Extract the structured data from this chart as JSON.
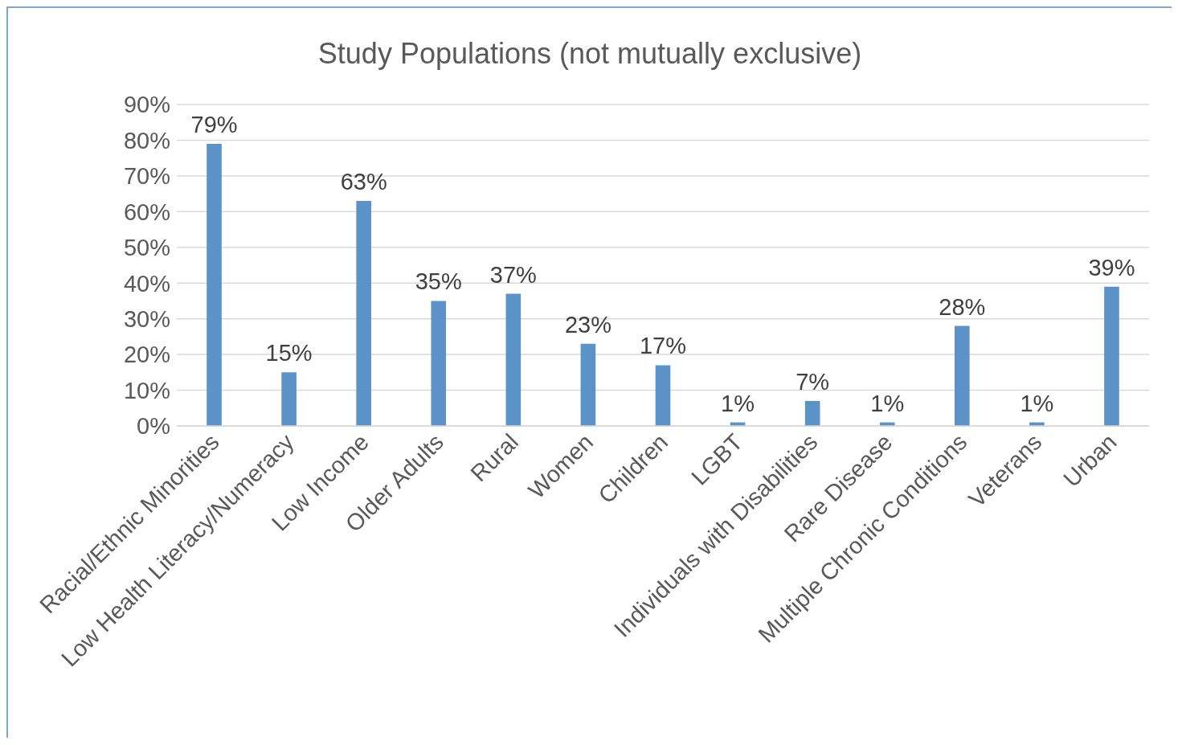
{
  "chart_data": {
    "type": "bar",
    "title": "Study Populations (not mutually exclusive)",
    "categories": [
      "Racial/Ethnic Minorities",
      "Low Health Literacy/Numeracy",
      "Low Income",
      "Older Adults",
      "Rural",
      "Women",
      "Children",
      "LGBT",
      "Individuals with Disabilities",
      "Rare Disease",
      "Multiple Chronic Conditions",
      "Veterans",
      "Urban"
    ],
    "values": [
      79,
      15,
      63,
      35,
      37,
      23,
      17,
      1,
      7,
      1,
      28,
      1,
      39
    ],
    "value_labels": [
      "79%",
      "15%",
      "63%",
      "35%",
      "37%",
      "23%",
      "17%",
      "1%",
      "7%",
      "1%",
      "28%",
      "1%",
      "39%"
    ],
    "color": "#5b93c8",
    "ylim": [
      0,
      90
    ],
    "yticks": [
      {
        "value": 0,
        "label": "0%"
      },
      {
        "value": 10,
        "label": "10%"
      },
      {
        "value": 20,
        "label": "20%"
      },
      {
        "value": 30,
        "label": "30%"
      },
      {
        "value": 40,
        "label": "40%"
      },
      {
        "value": 50,
        "label": "50%"
      },
      {
        "value": 60,
        "label": "60%"
      },
      {
        "value": 70,
        "label": "70%"
      },
      {
        "value": 80,
        "label": "80%"
      },
      {
        "value": 90,
        "label": "90%"
      }
    ],
    "grid": "y",
    "legend": false
  }
}
